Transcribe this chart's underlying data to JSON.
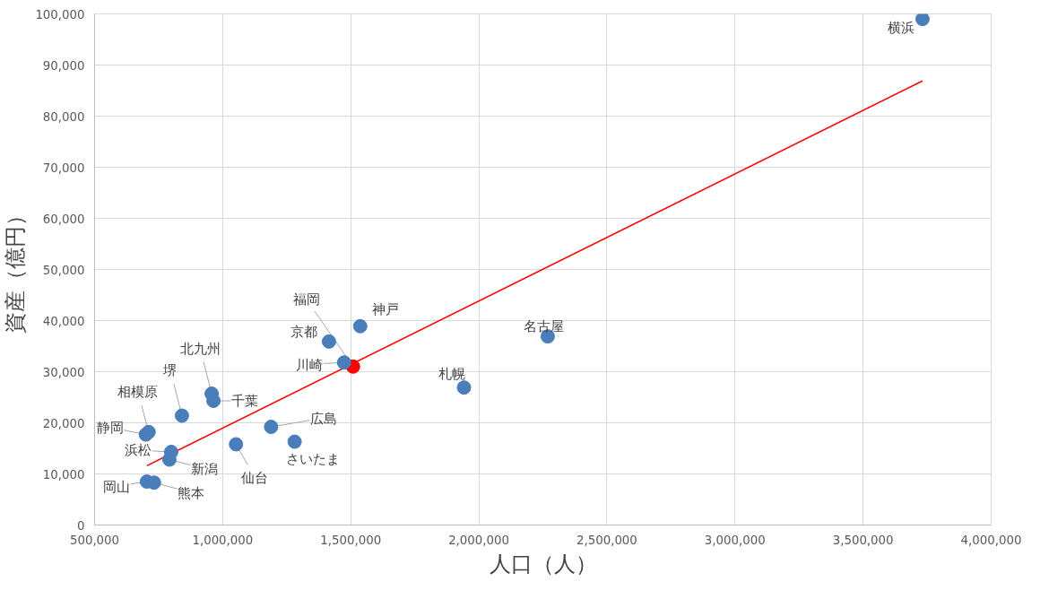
{
  "chart_data": {
    "type": "scatter",
    "xlabel": "人口（人）",
    "ylabel": "資産（億円）",
    "xlim": [
      500000,
      4000000
    ],
    "xticks": [
      {
        "value": 500000,
        "label": "500,000"
      },
      {
        "value": 1000000,
        "label": "1,000,000"
      },
      {
        "value": 1500000,
        "label": "1,500,000"
      },
      {
        "value": 2000000,
        "label": "2,000,000"
      },
      {
        "value": 2500000,
        "label": "2,500,000"
      },
      {
        "value": 3000000,
        "label": "3,000,000"
      },
      {
        "value": 3500000,
        "label": "3,500,000"
      },
      {
        "value": 4000000,
        "label": "4,000,000"
      }
    ],
    "ylim": [
      0,
      100000
    ],
    "yticks": [
      0,
      {
        "value": 10000,
        "label": "10,000"
      },
      {
        "value": 20000,
        "label": "20,000"
      },
      {
        "value": 30000,
        "label": "30,000"
      },
      {
        "value": 40000,
        "label": "40,000"
      },
      {
        "value": 50000,
        "label": "50,000"
      },
      {
        "value": 60000,
        "label": "60,000"
      },
      {
        "value": 70000,
        "label": "70,000"
      },
      {
        "value": 80000,
        "label": "80,000"
      },
      {
        "value": 90000,
        "label": "90,000"
      },
      {
        "value": 100000,
        "label": "100,000"
      }
    ],
    "grid": true,
    "series": [
      {
        "marker": "circle",
        "x": [
          3732000,
          2269000,
          1942000,
          1537000,
          1415000,
          1509000,
          1474000,
          957000,
          964000,
          841000,
          711000,
          700000,
          1189000,
          1281000,
          1052000,
          799000,
          792000,
          704000,
          732000
        ],
        "values": [
          99000,
          36900,
          26900,
          38900,
          35900,
          31000,
          31800,
          25700,
          24300,
          21400,
          18200,
          17700,
          19200,
          16300,
          15800,
          14300,
          12800,
          8500,
          8300
        ],
        "colors": [
          "#4a7ebb",
          "#4a7ebb",
          "#4a7ebb",
          "#4a7ebb",
          "#4a7ebb",
          "#ff0000",
          "#4a7ebb",
          "#4a7ebb",
          "#4a7ebb",
          "#4a7ebb",
          "#4a7ebb",
          "#4a7ebb",
          "#4a7ebb",
          "#4a7ebb",
          "#4a7ebb",
          "#4a7ebb",
          "#4a7ebb",
          "#4a7ebb",
          "#4a7ebb"
        ]
      },
      {
        "type": "line",
        "color": "#ff0000",
        "x": [
          704000,
          3732000
        ],
        "values": [
          11600,
          86900
        ]
      }
    ],
    "annotations": [
      {
        "text": "横浜",
        "x": 3732000,
        "y": 99000
      },
      {
        "text": "名古屋",
        "x": 2269000,
        "y": 36900
      },
      {
        "text": "札幌",
        "x": 1942000,
        "y": 26900
      },
      {
        "text": "神戸",
        "x": 1537000,
        "y": 38900
      },
      {
        "text": "京都",
        "x": 1415000,
        "y": 35900
      },
      {
        "text": "福岡",
        "x": 1509000,
        "y": 31000
      },
      {
        "text": "川崎",
        "x": 1474000,
        "y": 31800
      },
      {
        "text": "北九州",
        "x": 957000,
        "y": 25700
      },
      {
        "text": "千葉",
        "x": 964000,
        "y": 24300
      },
      {
        "text": "堺",
        "x": 841000,
        "y": 21400
      },
      {
        "text": "相模原",
        "x": 711000,
        "y": 18200
      },
      {
        "text": "静岡",
        "x": 700000,
        "y": 17700
      },
      {
        "text": "広島",
        "x": 1189000,
        "y": 19200
      },
      {
        "text": "さいたま",
        "x": 1281000,
        "y": 16300
      },
      {
        "text": "仙台",
        "x": 1052000,
        "y": 15800
      },
      {
        "text": "浜松",
        "x": 799000,
        "y": 14300
      },
      {
        "text": "新潟",
        "x": 792000,
        "y": 12800
      },
      {
        "text": "岡山",
        "x": 704000,
        "y": 8500
      },
      {
        "text": "熊本",
        "x": 732000,
        "y": 8300
      }
    ]
  }
}
